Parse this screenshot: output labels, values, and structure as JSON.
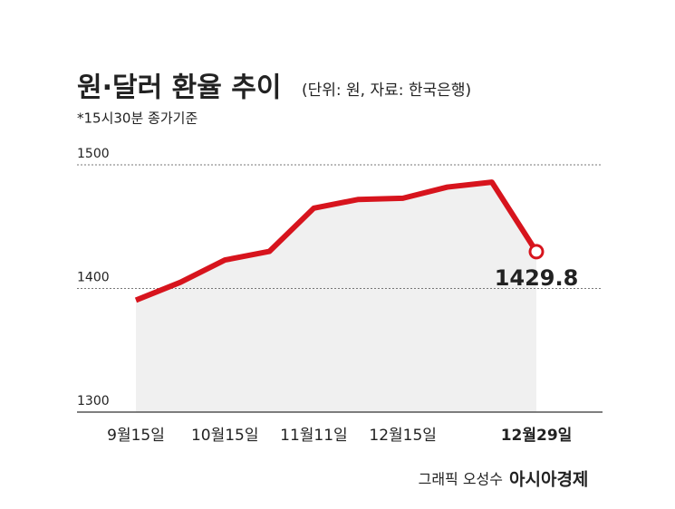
{
  "chart_data": {
    "type": "line",
    "title": "원·달러 환율 추이",
    "subtitle": "(단위: 원, 자료: 한국은행)",
    "note": "*15시30분 종가기준",
    "categories": [
      "9월15일",
      null,
      "10월15일",
      null,
      "11월11일",
      null,
      "12월15일",
      null,
      null,
      "12월29일"
    ],
    "values": [
      1390.5,
      1405,
      1423,
      1430,
      1465,
      1472,
      1473,
      1482,
      1486,
      1429.8
    ],
    "color": "#d7141d",
    "ylim": [
      1300,
      1500
    ],
    "yticks": [
      1300,
      1400,
      1500
    ],
    "grid": true,
    "credit": "그래픽 오성수",
    "logo": "아시아경제"
  }
}
